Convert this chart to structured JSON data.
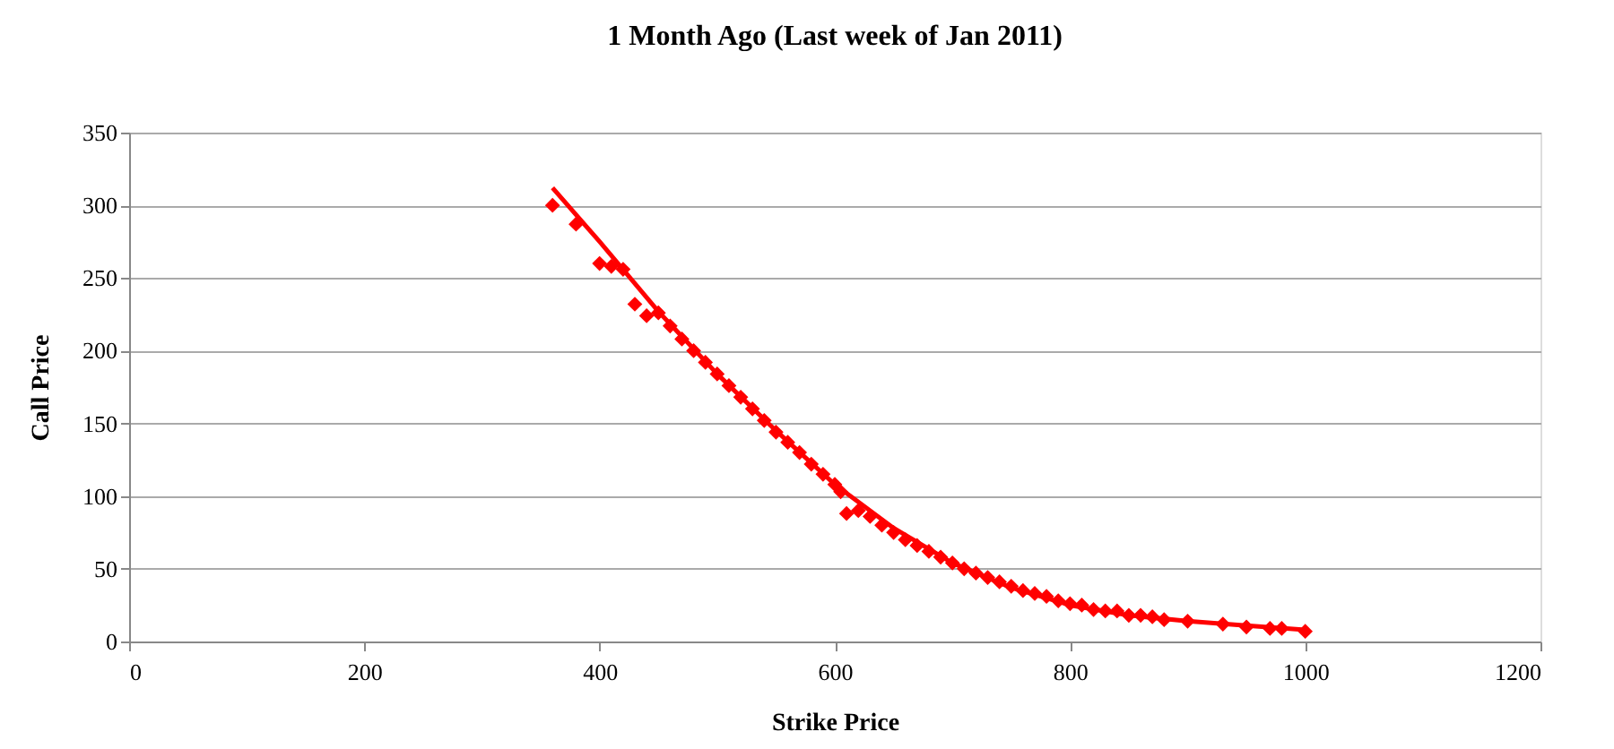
{
  "chart_data": {
    "type": "scatter",
    "title": "1 Month Ago (Last week of Jan 2011)",
    "xlabel": "Strike Price",
    "ylabel": "Call Price",
    "xlim": [
      0,
      1200
    ],
    "xticks": [
      0,
      200,
      400,
      600,
      800,
      1000,
      1200
    ],
    "ylim": [
      0,
      350
    ],
    "yticks": [
      0,
      50,
      100,
      150,
      200,
      250,
      300,
      350
    ],
    "grid": "y",
    "series": [
      {
        "type": "scatter",
        "marker": "diamond",
        "color": "#ff0000",
        "x": [
          360,
          380,
          400,
          410,
          420,
          430,
          440,
          450,
          460,
          470,
          480,
          490,
          500,
          510,
          520,
          530,
          540,
          550,
          560,
          570,
          580,
          590,
          600,
          605,
          610,
          620,
          630,
          640,
          650,
          660,
          670,
          680,
          690,
          700,
          710,
          720,
          730,
          740,
          750,
          760,
          770,
          780,
          790,
          800,
          810,
          820,
          830,
          840,
          850,
          860,
          870,
          880,
          900,
          930,
          950,
          970,
          980,
          1000
        ],
        "values": [
          300,
          287,
          260,
          258,
          256,
          232,
          224,
          226,
          217,
          208,
          200,
          192,
          184,
          176,
          168,
          160,
          152,
          144,
          137,
          130,
          122,
          115,
          108,
          103,
          88,
          90,
          86,
          80,
          75,
          70,
          66,
          62,
          58,
          54,
          50,
          47,
          44,
          41,
          38,
          35,
          33,
          31,
          28,
          26,
          25,
          22,
          21,
          21,
          18,
          18,
          17,
          15,
          14,
          12,
          10,
          9,
          9,
          7
        ]
      },
      {
        "type": "line",
        "color": "#ff0000",
        "line_style": "solid",
        "x": [
          360,
          400,
          450,
          500,
          550,
          600,
          650,
          700,
          750,
          800,
          850,
          900,
          950,
          1000
        ],
        "values": [
          312,
          275,
          227,
          184,
          145,
          108,
          78,
          54,
          37,
          25,
          18,
          14,
          11,
          8
        ]
      }
    ]
  }
}
